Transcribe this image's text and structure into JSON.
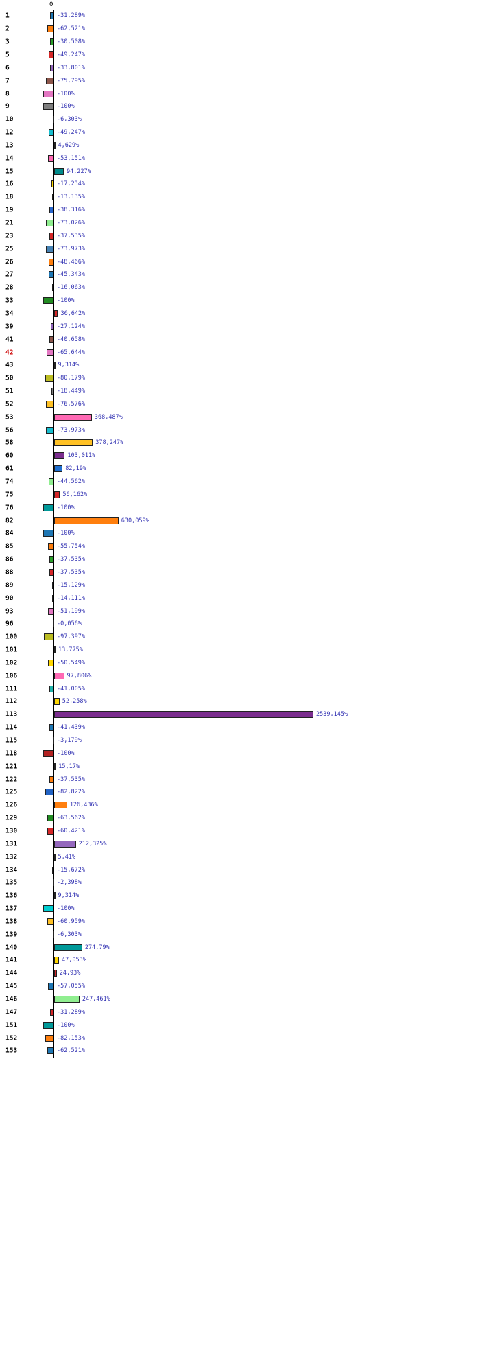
{
  "chart_data": {
    "type": "bar",
    "orientation": "horizontal",
    "unit": "%",
    "x_axis": {
      "zero_label": "0"
    },
    "value_range": [
      -100,
      2539.145
    ],
    "grid": false,
    "legend": "none",
    "value_label_color": "#3333b3",
    "highlighted_category": "42",
    "highlight_color": "#cc0000",
    "rows": [
      {
        "category": "1",
        "value": -31.289,
        "label": "-31,289%",
        "color": "#1f77b4"
      },
      {
        "category": "2",
        "value": -62.521,
        "label": "-62,521%",
        "color": "#ff7f0e"
      },
      {
        "category": "3",
        "value": -30.508,
        "label": "-30,508%",
        "color": "#2ca02c"
      },
      {
        "category": "5",
        "value": -49.247,
        "label": "-49,247%",
        "color": "#d62728"
      },
      {
        "category": "6",
        "value": -33.801,
        "label": "-33,801%",
        "color": "#9467bd"
      },
      {
        "category": "7",
        "value": -75.795,
        "label": "-75,795%",
        "color": "#8c564b"
      },
      {
        "category": "8",
        "value": -100,
        "label": "-100%",
        "color": "#e377c2"
      },
      {
        "category": "9",
        "value": -100,
        "label": "-100%",
        "color": "#7f7f7f"
      },
      {
        "category": "10",
        "value": -6.303,
        "label": "-6,303%",
        "color": "#bcbd22"
      },
      {
        "category": "12",
        "value": -49.247,
        "label": "-49,247%",
        "color": "#17becf"
      },
      {
        "category": "13",
        "value": 4.629,
        "label": "4,629%",
        "color": "#1f77b4"
      },
      {
        "category": "14",
        "value": -53.151,
        "label": "-53,151%",
        "color": "#ff69b4"
      },
      {
        "category": "15",
        "value": 94.227,
        "label": "94,227%",
        "color": "#008b8b"
      },
      {
        "category": "16",
        "value": -17.234,
        "label": "-17,234%",
        "color": "#ffd700"
      },
      {
        "category": "18",
        "value": -13.135,
        "label": "-13,135%",
        "color": "#1f77b4"
      },
      {
        "category": "19",
        "value": -38.316,
        "label": "-38,316%",
        "color": "#2966cc"
      },
      {
        "category": "21",
        "value": -73.026,
        "label": "-73,026%",
        "color": "#90ee90"
      },
      {
        "category": "23",
        "value": -37.535,
        "label": "-37,535%",
        "color": "#d62728"
      },
      {
        "category": "25",
        "value": -73.973,
        "label": "-73,973%",
        "color": "#4682b4"
      },
      {
        "category": "26",
        "value": -48.466,
        "label": "-48,466%",
        "color": "#ff7f0e"
      },
      {
        "category": "27",
        "value": -45.343,
        "label": "-45,343%",
        "color": "#1f77b4"
      },
      {
        "category": "28",
        "value": -16.063,
        "label": "-16,063%",
        "color": "#ff7f0e"
      },
      {
        "category": "33",
        "value": -100,
        "label": "-100%",
        "color": "#228b22"
      },
      {
        "category": "34",
        "value": 36.642,
        "label": "36,642%",
        "color": "#d62728"
      },
      {
        "category": "39",
        "value": -27.124,
        "label": "-27,124%",
        "color": "#9467bd"
      },
      {
        "category": "41",
        "value": -40.658,
        "label": "-40,658%",
        "color": "#8c564b"
      },
      {
        "category": "42",
        "value": -65.644,
        "label": "-65,644%",
        "color": "#e377c2"
      },
      {
        "category": "43",
        "value": 9.314,
        "label": "9,314%",
        "color": "#2ca02c"
      },
      {
        "category": "50",
        "value": -80.179,
        "label": "-80,179%",
        "color": "#bcbd22"
      },
      {
        "category": "51",
        "value": -18.449,
        "label": "-18,449%",
        "color": "#7f7f7f"
      },
      {
        "category": "52",
        "value": -76.576,
        "label": "-76,576%",
        "color": "#ffc125"
      },
      {
        "category": "53",
        "value": 368.487,
        "label": "368,487%",
        "color": "#ff69b4"
      },
      {
        "category": "56",
        "value": -73.973,
        "label": "-73,973%",
        "color": "#17becf"
      },
      {
        "category": "58",
        "value": 378.247,
        "label": "378,247%",
        "color": "#ffc125"
      },
      {
        "category": "60",
        "value": 103.011,
        "label": "103,011%",
        "color": "#7b2d8e"
      },
      {
        "category": "61",
        "value": 82.19,
        "label": "82,19%",
        "color": "#1e6fd0"
      },
      {
        "category": "74",
        "value": -44.562,
        "label": "-44,562%",
        "color": "#90ee90"
      },
      {
        "category": "75",
        "value": 56.162,
        "label": "56,162%",
        "color": "#d62728"
      },
      {
        "category": "76",
        "value": -100,
        "label": "-100%",
        "color": "#009999"
      },
      {
        "category": "82",
        "value": 630.059,
        "label": "630,059%",
        "color": "#ff7f0e"
      },
      {
        "category": "84",
        "value": -100,
        "label": "-100%",
        "color": "#1f77b4"
      },
      {
        "category": "85",
        "value": -55.754,
        "label": "-55,754%",
        "color": "#ff7f0e"
      },
      {
        "category": "86",
        "value": -37.535,
        "label": "-37,535%",
        "color": "#2ca02c"
      },
      {
        "category": "88",
        "value": -37.535,
        "label": "-37,535%",
        "color": "#d62728"
      },
      {
        "category": "89",
        "value": -15.129,
        "label": "-15,129%",
        "color": "#9467bd"
      },
      {
        "category": "90",
        "value": -14.111,
        "label": "-14,111%",
        "color": "#8c564b"
      },
      {
        "category": "93",
        "value": -51.199,
        "label": "-51,199%",
        "color": "#e377c2"
      },
      {
        "category": "96",
        "value": -0.056,
        "label": "-0,056%",
        "color": "#7f7f7f"
      },
      {
        "category": "100",
        "value": -97.397,
        "label": "-97,397%",
        "color": "#bcbd22"
      },
      {
        "category": "101",
        "value": 13.775,
        "label": "13,775%",
        "color": "#17becf"
      },
      {
        "category": "102",
        "value": -50.549,
        "label": "-50,549%",
        "color": "#ffd700"
      },
      {
        "category": "106",
        "value": 97.806,
        "label": "97,806%",
        "color": "#ff69b4"
      },
      {
        "category": "111",
        "value": -41.005,
        "label": "-41,005%",
        "color": "#20b2aa"
      },
      {
        "category": "112",
        "value": 52.258,
        "label": "52,258%",
        "color": "#ffd700"
      },
      {
        "category": "113",
        "value": 2539.145,
        "label": "2539,145%",
        "color": "#7b2d8e"
      },
      {
        "category": "114",
        "value": -41.439,
        "label": "-41,439%",
        "color": "#1f77b4"
      },
      {
        "category": "115",
        "value": -3.179,
        "label": "-3,179%",
        "color": "#7f7f7f"
      },
      {
        "category": "118",
        "value": -100,
        "label": "-100%",
        "color": "#b22222"
      },
      {
        "category": "121",
        "value": 15.17,
        "label": "15,17%",
        "color": "#2ca02c"
      },
      {
        "category": "122",
        "value": -37.535,
        "label": "-37,535%",
        "color": "#ff7f0e"
      },
      {
        "category": "125",
        "value": -82.822,
        "label": "-82,822%",
        "color": "#2263c5"
      },
      {
        "category": "126",
        "value": 126.436,
        "label": "126,436%",
        "color": "#ff7f0e"
      },
      {
        "category": "129",
        "value": -63.562,
        "label": "-63,562%",
        "color": "#228b22"
      },
      {
        "category": "130",
        "value": -60.421,
        "label": "-60,421%",
        "color": "#d62728"
      },
      {
        "category": "131",
        "value": 212.325,
        "label": "212,325%",
        "color": "#9467bd"
      },
      {
        "category": "132",
        "value": 5.41,
        "label": "5,41%",
        "color": "#7f7f7f"
      },
      {
        "category": "134",
        "value": -15.672,
        "label": "-15,672%",
        "color": "#d62728"
      },
      {
        "category": "135",
        "value": -2.398,
        "label": "-2,398%",
        "color": "#7f7f7f"
      },
      {
        "category": "136",
        "value": 9.314,
        "label": "9,314%",
        "color": "#2ca02c"
      },
      {
        "category": "137",
        "value": -100,
        "label": "-100%",
        "color": "#00ced1"
      },
      {
        "category": "138",
        "value": -60.959,
        "label": "-60,959%",
        "color": "#ffc125"
      },
      {
        "category": "139",
        "value": -6.303,
        "label": "-6,303%",
        "color": "#bcbd22"
      },
      {
        "category": "140",
        "value": 274.79,
        "label": "274,79%",
        "color": "#009999"
      },
      {
        "category": "141",
        "value": 47.053,
        "label": "47,053%",
        "color": "#ffd700"
      },
      {
        "category": "144",
        "value": 24.93,
        "label": "24,93%",
        "color": "#d62728"
      },
      {
        "category": "145",
        "value": -57.055,
        "label": "-57,055%",
        "color": "#1f77b4"
      },
      {
        "category": "146",
        "value": 247.461,
        "label": "247,461%",
        "color": "#90ee90"
      },
      {
        "category": "147",
        "value": -31.289,
        "label": "-31,289%",
        "color": "#d62728"
      },
      {
        "category": "151",
        "value": -100,
        "label": "-100%",
        "color": "#009999"
      },
      {
        "category": "152",
        "value": -82.153,
        "label": "-82,153%",
        "color": "#ff7f0e"
      },
      {
        "category": "153",
        "value": -62.521,
        "label": "-62,521%",
        "color": "#1f77b4"
      }
    ]
  }
}
